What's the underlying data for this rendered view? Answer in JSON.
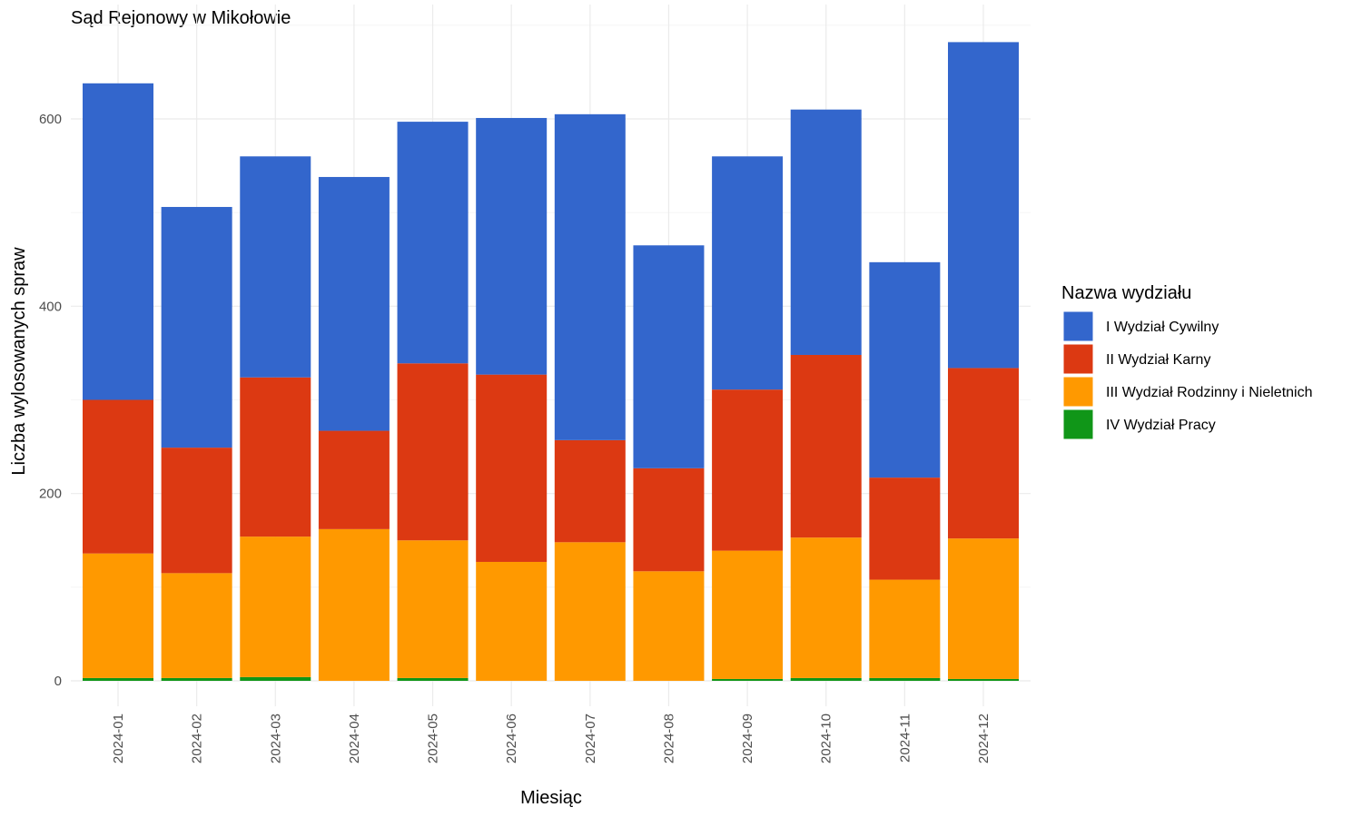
{
  "chart_data": {
    "type": "bar",
    "stacked": true,
    "title": "Sąd Rejonowy w Mikołowie",
    "xlabel": "Miesiąc",
    "ylabel": "Liczba wylosowanych spraw",
    "ylim": [
      0,
      700
    ],
    "yticks": [
      0,
      200,
      400,
      600
    ],
    "grid": true,
    "legend_position": "right",
    "legend_title": "Nazwa wydziału",
    "categories": [
      "2024-01",
      "2024-02",
      "2024-03",
      "2024-04",
      "2024-05",
      "2024-06",
      "2024-07",
      "2024-08",
      "2024-09",
      "2024-10",
      "2024-11",
      "2024-12"
    ],
    "series": [
      {
        "name": "IV Wydział Pracy",
        "color": "#109618",
        "values": [
          3,
          3,
          4,
          0,
          3,
          0,
          0,
          0,
          2,
          3,
          3,
          2
        ]
      },
      {
        "name": "III Wydział Rodzinny i Nieletnich",
        "color": "#ff9900",
        "values": [
          133,
          112,
          150,
          162,
          147,
          127,
          148,
          117,
          137,
          150,
          105,
          150
        ]
      },
      {
        "name": "II Wydział Karny",
        "color": "#dc3912",
        "values": [
          164,
          134,
          170,
          105,
          189,
          200,
          109,
          110,
          172,
          195,
          109,
          182
        ]
      },
      {
        "name": "I Wydział Cywilny",
        "color": "#3366cc",
        "values": [
          338,
          257,
          236,
          271,
          258,
          274,
          348,
          238,
          249,
          262,
          230,
          348
        ]
      }
    ],
    "legend_order": [
      "I Wydział Cywilny",
      "II Wydział Karny",
      "III Wydział Rodzinny i Nieletnich",
      "IV Wydział Pracy"
    ]
  }
}
